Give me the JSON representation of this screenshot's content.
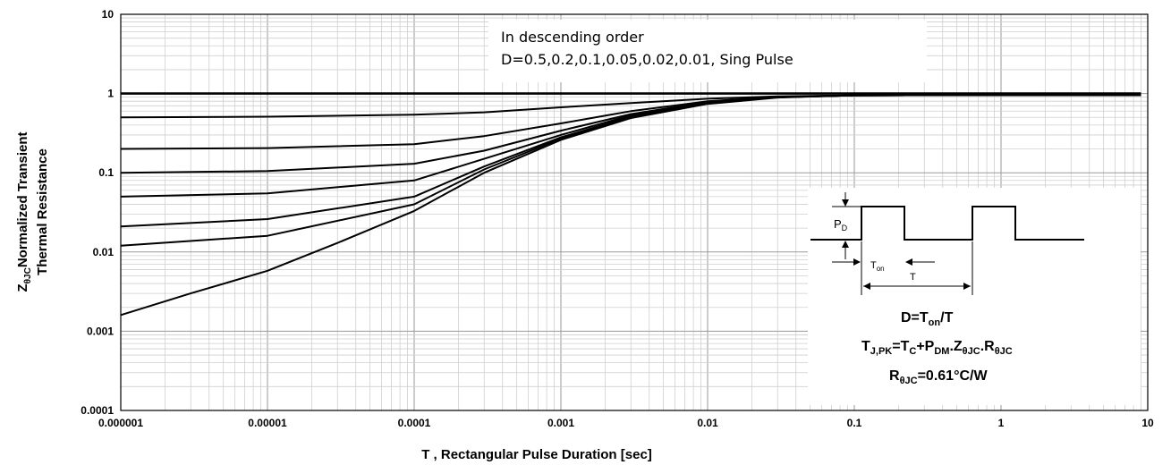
{
  "chart_data": {
    "type": "line",
    "xscale": "log",
    "yscale": "log",
    "xlim": [
      1e-06,
      10
    ],
    "ylim": [
      0.0001,
      10
    ],
    "grid": true,
    "xlabel": "T , Rectangular Pulse Duration [sec]",
    "ylabel_line1": "Normalized Transient",
    "ylabel_symbol_main": "Z",
    "ylabel_symbol_sub": "θJC",
    "ylabel_line2": "Thermal Resistance",
    "x_tick_labels": [
      "0.000001",
      "0.00001",
      "0.0001",
      "0.001",
      "0.01",
      "0.1",
      "1",
      "10"
    ],
    "y_tick_labels": [
      "0.0001",
      "0.001",
      "0.01",
      "0.1",
      "1",
      "10"
    ],
    "legend_line1": "In  descending order",
    "legend_line2": "D=0.5,0.2,0.1,0.05,0.02,0.01, Sing Pulse",
    "series": [
      {
        "x": [
          1e-06,
          1e-05,
          0.0001,
          0.0003,
          0.001,
          0.003,
          0.01,
          0.1,
          1,
          9
        ],
        "y": [
          1,
          1,
          1,
          1,
          1,
          1,
          1,
          1,
          1,
          1
        ]
      },
      {
        "x": [
          1e-06,
          1e-05,
          0.0001,
          0.0003,
          0.001,
          0.003,
          0.01,
          0.03,
          0.1,
          1,
          9
        ],
        "y": [
          0.5,
          0.51,
          0.54,
          0.58,
          0.67,
          0.76,
          0.86,
          0.92,
          0.95,
          0.96,
          0.96
        ]
      },
      {
        "x": [
          1e-06,
          1e-05,
          0.0001,
          0.0003,
          0.001,
          0.003,
          0.01,
          0.03,
          0.1,
          1,
          9
        ],
        "y": [
          0.2,
          0.205,
          0.23,
          0.29,
          0.42,
          0.6,
          0.8,
          0.91,
          0.95,
          0.96,
          0.96
        ]
      },
      {
        "x": [
          1e-06,
          1e-05,
          0.0001,
          0.0003,
          0.001,
          0.003,
          0.01,
          0.03,
          0.1,
          1,
          9
        ],
        "y": [
          0.1,
          0.105,
          0.13,
          0.19,
          0.34,
          0.55,
          0.78,
          0.9,
          0.95,
          0.96,
          0.96
        ]
      },
      {
        "x": [
          1e-06,
          1e-05,
          0.0001,
          0.0003,
          0.001,
          0.003,
          0.01,
          0.03,
          0.1,
          1,
          9
        ],
        "y": [
          0.05,
          0.055,
          0.08,
          0.15,
          0.3,
          0.53,
          0.77,
          0.9,
          0.95,
          0.96,
          0.96
        ]
      },
      {
        "x": [
          1e-06,
          1e-05,
          0.0001,
          0.0003,
          0.001,
          0.003,
          0.01,
          0.03,
          0.1,
          1,
          9
        ],
        "y": [
          0.021,
          0.026,
          0.05,
          0.12,
          0.28,
          0.51,
          0.76,
          0.9,
          0.95,
          0.96,
          0.96
        ]
      },
      {
        "x": [
          1e-06,
          1e-05,
          0.0001,
          0.0003,
          0.001,
          0.003,
          0.01,
          0.03,
          0.1,
          1,
          9
        ],
        "y": [
          0.012,
          0.016,
          0.04,
          0.11,
          0.27,
          0.5,
          0.75,
          0.9,
          0.95,
          0.96,
          0.96
        ]
      },
      {
        "x": [
          1e-06,
          3e-06,
          1e-05,
          3e-05,
          0.0001,
          0.0003,
          0.001,
          0.003,
          0.01,
          0.03,
          0.1,
          1,
          9
        ],
        "y": [
          0.0016,
          0.003,
          0.0058,
          0.013,
          0.033,
          0.1,
          0.26,
          0.49,
          0.74,
          0.89,
          0.95,
          0.96,
          0.96
        ]
      }
    ]
  },
  "inset": {
    "pd_main": "P",
    "pd_sub": "D",
    "ton_main": "T",
    "ton_sub": "on",
    "period": "T",
    "formula1_main": "D=T",
    "formula1_sub": "on",
    "formula1_tail": "/T",
    "formula2_a": "T",
    "formula2_a_sub": "J,PK",
    "formula2_b": "=T",
    "formula2_b_sub": "C",
    "formula2_c": "+P",
    "formula2_c_sub": "DM",
    "formula2_d": ".Z",
    "formula2_d_sub": "θJC",
    "formula2_e": ".R",
    "formula2_e_sub": "θJC",
    "formula3_a": "R",
    "formula3_a_sub": "θJC",
    "formula3_b": "=0.61°C/W"
  }
}
